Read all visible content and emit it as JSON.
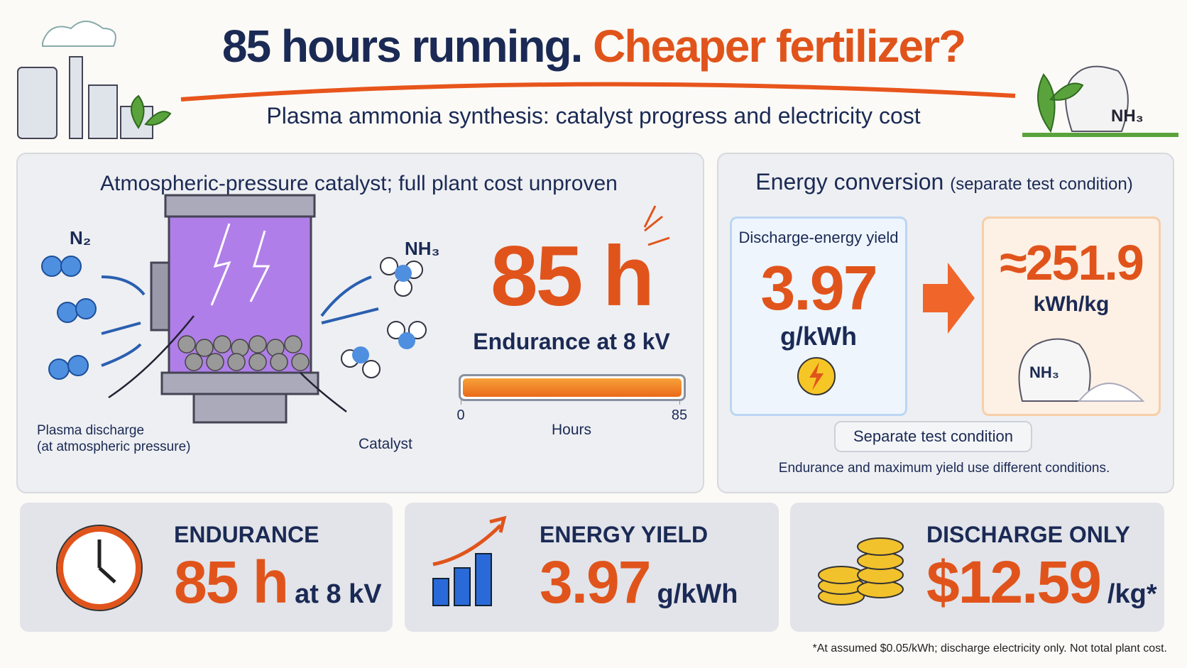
{
  "header": {
    "title_part1": "85 hours running.",
    "title_part2": "Cheaper fertilizer?",
    "subtitle": "Plasma ammonia synthesis: catalyst progress and electricity cost",
    "bag_label": "NH₃"
  },
  "reactor_panel": {
    "title": "Atmospheric-pressure catalyst; full plant cost unproven",
    "input_label": "N₂",
    "output_label": "NH₃",
    "plasma_label": [
      "Plasma discharge",
      "(at atmospheric pressure)"
    ],
    "catalyst_label": "Catalyst",
    "big_value": "85 h",
    "caption": "Endurance at 8 kV",
    "progress": {
      "value": 85,
      "ticks": [
        0,
        85
      ],
      "axis_label": "Hours"
    }
  },
  "energy_panel": {
    "title": "Energy conversion",
    "title_note": "(separate test condition)",
    "yield_box": {
      "label": "Discharge-energy yield",
      "value": "3.97",
      "unit": "g/kWh"
    },
    "result_box": {
      "value": "≈251.9",
      "unit": "kWh/kg",
      "bag_label": "NH₃"
    },
    "badge": "Separate test condition",
    "note": "Endurance and maximum yield use different conditions."
  },
  "cards": [
    {
      "title": "ENDURANCE",
      "value": "85 h",
      "unit": "at 8 kV"
    },
    {
      "title": "ENERGY YIELD",
      "value": "3.97",
      "unit": "g/kWh"
    },
    {
      "title": "DISCHARGE ONLY",
      "value": "$12.59",
      "unit": "/kg*"
    }
  ],
  "footnote": "*At assumed $0.05/kWh; discharge electricity only. Not total plant cost."
}
